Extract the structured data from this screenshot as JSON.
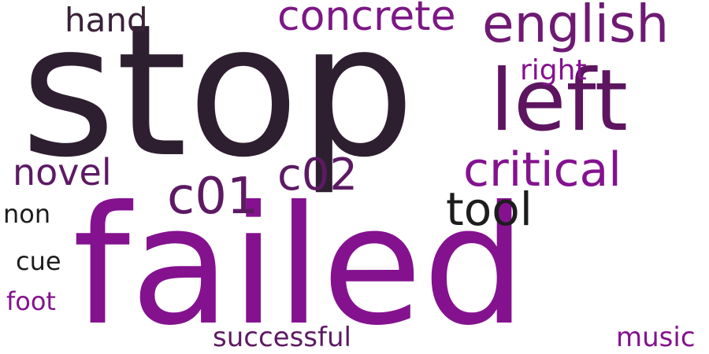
{
  "word_cloud": {
    "words": [
      {
        "id": "stop",
        "text": "stop",
        "color": "#2e1f30"
      },
      {
        "id": "failed",
        "text": "failed",
        "color": "#84128f"
      },
      {
        "id": "left",
        "text": "left",
        "color": "#5d1560"
      },
      {
        "id": "english",
        "text": "english",
        "color": "#6e1a73"
      },
      {
        "id": "critical",
        "text": "critical",
        "color": "#84128f"
      },
      {
        "id": "concrete",
        "text": "concrete",
        "color": "#7c1885"
      },
      {
        "id": "c01",
        "text": "c01",
        "color": "#5d1a63"
      },
      {
        "id": "c02",
        "text": "c02",
        "color": "#5d1a63"
      },
      {
        "id": "tool",
        "text": "tool",
        "color": "#1d1d1d"
      },
      {
        "id": "novel",
        "text": "novel",
        "color": "#5d1a63"
      },
      {
        "id": "hand",
        "text": "hand",
        "color": "#3a2238"
      },
      {
        "id": "right",
        "text": "right",
        "color": "#84128f"
      },
      {
        "id": "non",
        "text": "non",
        "color": "#1d1d1d"
      },
      {
        "id": "cue",
        "text": "cue",
        "color": "#1d1d1d"
      },
      {
        "id": "foot",
        "text": "foot",
        "color": "#84128f"
      },
      {
        "id": "successful",
        "text": "successful",
        "color": "#5d1a63"
      },
      {
        "id": "music",
        "text": "music",
        "color": "#84128f"
      }
    ],
    "background": "#ffffff"
  }
}
